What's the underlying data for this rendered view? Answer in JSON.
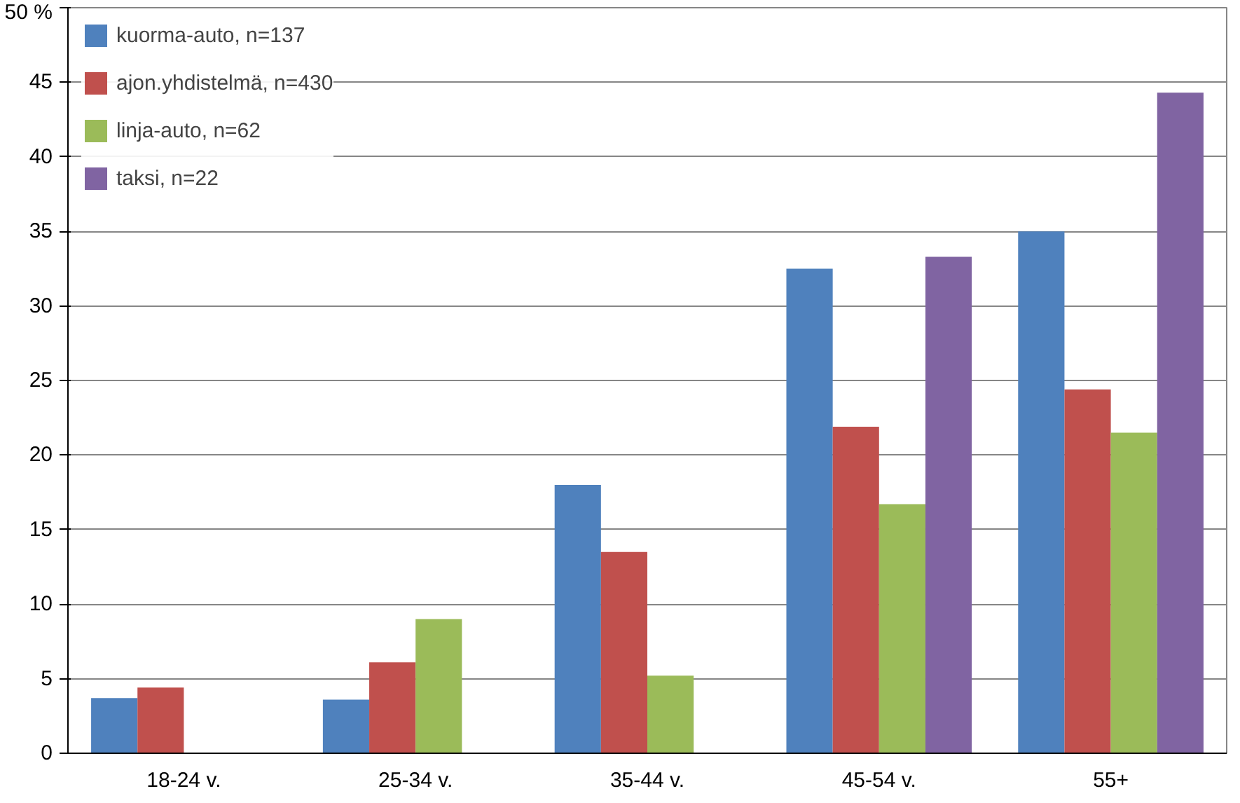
{
  "chart_data": {
    "type": "bar",
    "categories": [
      "18-24 v.",
      "25-34 v.",
      "35-44 v.",
      "45-54 v.",
      "55+"
    ],
    "series": [
      {
        "name": "kuorma-auto, n=137",
        "color": "#4f81bd",
        "values": [
          3.7,
          3.6,
          18.0,
          32.5,
          35.0
        ]
      },
      {
        "name": "ajon.yhdistelmä, n=430",
        "color": "#c0504d",
        "values": [
          4.4,
          6.1,
          13.5,
          21.9,
          24.4
        ]
      },
      {
        "name": "linja-auto, n=62",
        "color": "#9bbb59",
        "values": [
          0,
          9.0,
          5.2,
          16.7,
          21.5
        ]
      },
      {
        "name": "taksi, n=22",
        "color": "#8064a2",
        "values": [
          0,
          0,
          0,
          33.3,
          44.3
        ]
      }
    ],
    "ylim": [
      0,
      50
    ],
    "yticks": [
      0,
      5,
      10,
      15,
      20,
      25,
      30,
      35,
      40,
      45,
      {
        "value": 50,
        "label": "50 %"
      }
    ],
    "grid": "y",
    "legend": "top left"
  }
}
